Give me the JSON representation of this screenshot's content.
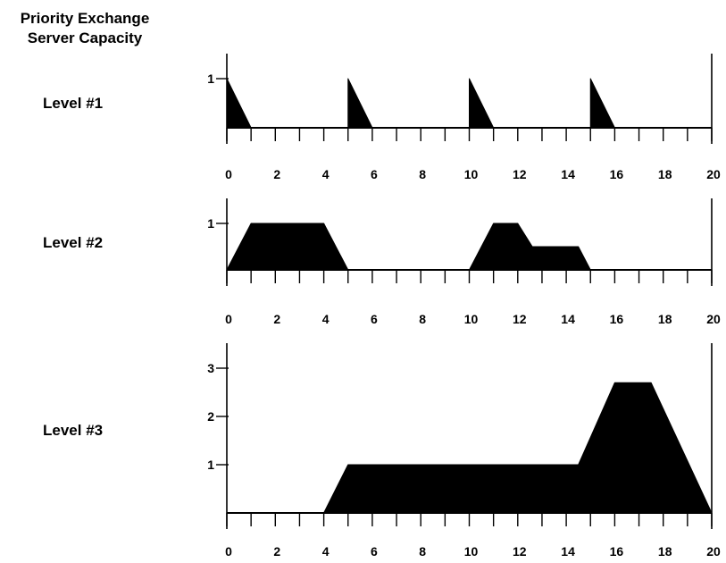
{
  "figure": {
    "title_line1": "Priority Exchange",
    "title_line2": "Server Capacity"
  },
  "chart_data": [
    {
      "type": "area",
      "label": "Level #1",
      "xlim": [
        0,
        20
      ],
      "ylim": [
        0,
        1
      ],
      "x_tick_labels": [
        "0",
        "2",
        "4",
        "6",
        "8",
        "10",
        "12",
        "14",
        "16",
        "18",
        "20"
      ],
      "y_tick_labels": [
        "1"
      ],
      "x": [
        0,
        1,
        5,
        5,
        6,
        10,
        10,
        11,
        15,
        15,
        16,
        20
      ],
      "y": [
        1,
        0,
        0,
        1,
        0,
        0,
        1,
        0,
        0,
        1,
        0,
        0
      ]
    },
    {
      "type": "area",
      "label": "Level #2",
      "xlim": [
        0,
        20
      ],
      "ylim": [
        0,
        1
      ],
      "x_tick_labels": [
        "0",
        "2",
        "4",
        "6",
        "8",
        "10",
        "12",
        "14",
        "16",
        "18",
        "20"
      ],
      "y_tick_labels": [
        "1"
      ],
      "x": [
        0,
        1,
        4,
        5,
        10,
        11,
        12,
        12.6,
        14.5,
        15,
        20
      ],
      "y": [
        0,
        1,
        1,
        0,
        0,
        1,
        1,
        0.5,
        0.5,
        0,
        0
      ]
    },
    {
      "type": "area",
      "label": "Level #3",
      "xlim": [
        0,
        20
      ],
      "ylim": [
        0,
        3
      ],
      "x_tick_labels": [
        "0",
        "2",
        "4",
        "6",
        "8",
        "10",
        "12",
        "14",
        "16",
        "18",
        "20"
      ],
      "y_tick_labels": [
        "1",
        "2",
        "3"
      ],
      "x": [
        0,
        4,
        5,
        14.5,
        16,
        17.5,
        20
      ],
      "y": [
        0,
        0,
        1,
        1,
        2.7,
        2.7,
        0
      ]
    }
  ]
}
